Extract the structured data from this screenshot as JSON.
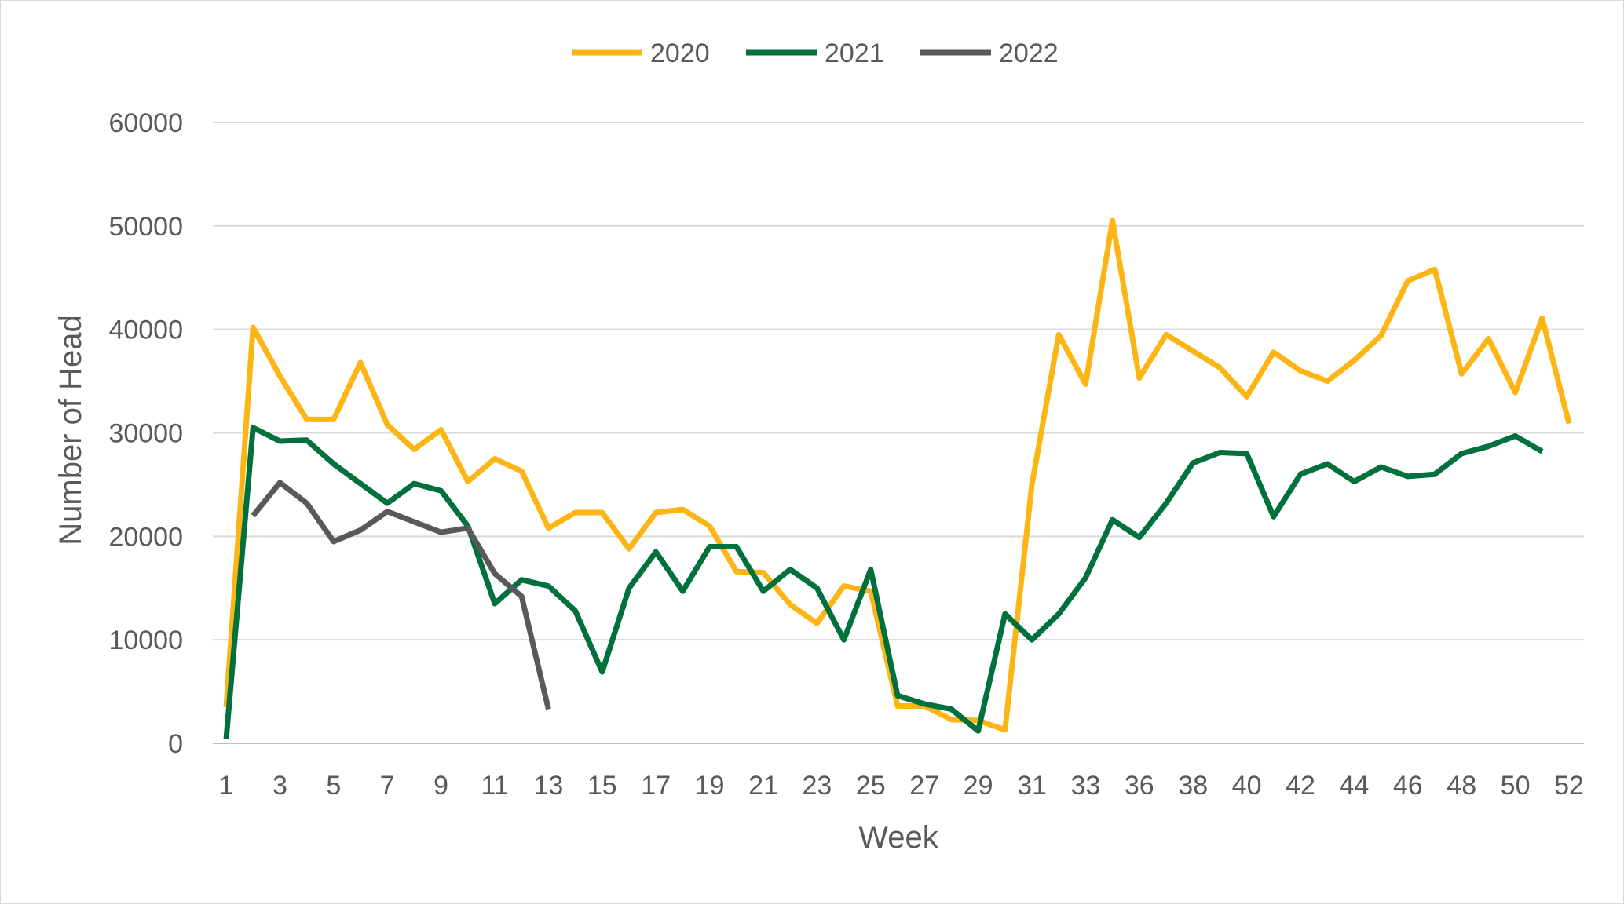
{
  "chart_data": {
    "type": "line",
    "xlabel": "Week",
    "ylabel": "Number of Head",
    "ylim": [
      0,
      60000
    ],
    "yticks": [
      0,
      10000,
      20000,
      30000,
      40000,
      50000,
      60000
    ],
    "x_tick_labels": [
      "1",
      "3",
      "5",
      "7",
      "9",
      "11",
      "13",
      "15",
      "17",
      "19",
      "21",
      "23",
      "25",
      "27",
      "29",
      "31",
      "33",
      "36",
      "38",
      "40",
      "42",
      "44",
      "46",
      "48",
      "50",
      "52"
    ],
    "grid": "horizontal",
    "legend_position": "top",
    "series": [
      {
        "name": "2020",
        "color": "#FDB515",
        "values": [
          3500,
          40200,
          35500,
          31300,
          31300,
          36800,
          30800,
          28400,
          30300,
          25300,
          27500,
          26300,
          20800,
          22300,
          22300,
          18800,
          22300,
          22600,
          21000,
          16600,
          16500,
          13400,
          11600,
          15200,
          14700,
          3600,
          3600,
          2300,
          2200,
          1300,
          25000,
          39500,
          34700,
          50500,
          35300,
          39500,
          37900,
          36300,
          33500,
          37800,
          36000,
          35000,
          37000,
          39400,
          44700,
          45800,
          35700,
          39100,
          33900,
          41100,
          30900
        ]
      },
      {
        "name": "2021",
        "color": "#00703C",
        "values": [
          400,
          30500,
          29200,
          29300,
          27000,
          25100,
          23200,
          25100,
          24400,
          21000,
          13500,
          15800,
          15200,
          12800,
          6900,
          15000,
          18500,
          14700,
          19000,
          19000,
          14700,
          16800,
          15000,
          10000,
          16800,
          4600,
          3800,
          3300,
          1200,
          12500,
          10000,
          12500,
          16000,
          21600,
          19900,
          23200,
          27100,
          28100,
          28000,
          21900,
          26000,
          27000,
          25300,
          26700,
          25800,
          26000,
          28000,
          28700,
          29700,
          28200
        ]
      },
      {
        "name": "2022",
        "color": "#595959",
        "values": [
          null,
          22000,
          25200,
          23200,
          19500,
          20600,
          22400,
          21400,
          20400,
          20800,
          16400,
          14200,
          3300
        ]
      }
    ]
  }
}
